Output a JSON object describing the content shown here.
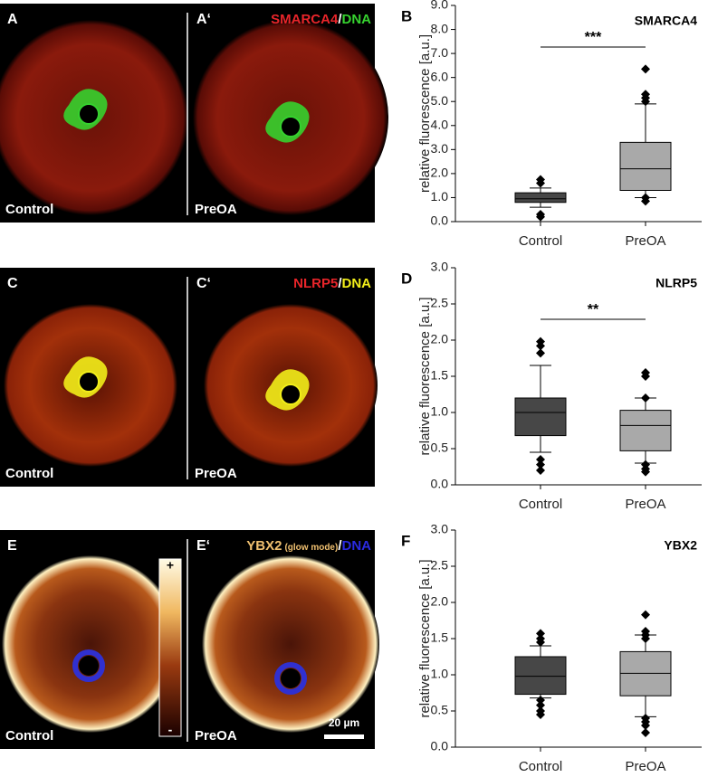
{
  "chart_data": [
    {
      "type": "box",
      "panel_label": "B",
      "title": "SMARCA4",
      "y_label": "relative fluorescence [a.u.]",
      "categories": [
        "Control",
        "PreOA"
      ],
      "boxes": [
        {
          "whisker_low": 0.6,
          "q1": 0.8,
          "median": 0.95,
          "q3": 1.2,
          "whisker_high": 1.4,
          "outliers": [
            1.75,
            1.6,
            0.3,
            0.2
          ],
          "color": "#474747"
        },
        {
          "whisker_low": 1.0,
          "q1": 1.3,
          "median": 2.2,
          "q3": 3.3,
          "whisker_high": 4.9,
          "outliers": [
            6.35,
            5.3,
            5.15,
            5.0,
            1.0,
            0.85
          ],
          "color": "#a9a9a9"
        }
      ],
      "significance": "***",
      "ylim": [
        0,
        9
      ],
      "yticks": [
        {
          "value": 0,
          "label": "0.0"
        },
        {
          "value": 1,
          "label": "1.0"
        },
        {
          "value": 2,
          "label": "2.0"
        },
        {
          "value": 3,
          "label": "3.0"
        },
        {
          "value": 4,
          "label": "4.0"
        },
        {
          "value": 5,
          "label": "5.0"
        },
        {
          "value": 6,
          "label": "6.0"
        },
        {
          "value": 7,
          "label": "7.0"
        },
        {
          "value": 8,
          "label": "8.0"
        },
        {
          "value": 9,
          "label": "9.0"
        }
      ]
    },
    {
      "type": "box",
      "panel_label": "D",
      "title": "NLRP5",
      "y_label": "relative fluorescence [a.u.]",
      "categories": [
        "Control",
        "PreOA"
      ],
      "boxes": [
        {
          "whisker_low": 0.45,
          "q1": 0.68,
          "median": 1.0,
          "q3": 1.2,
          "whisker_high": 1.65,
          "outliers": [
            1.98,
            1.92,
            1.82,
            0.35,
            0.28,
            0.2
          ],
          "color": "#474747"
        },
        {
          "whisker_low": 0.3,
          "q1": 0.47,
          "median": 0.82,
          "q3": 1.03,
          "whisker_high": 1.2,
          "outliers": [
            1.55,
            1.5,
            1.2,
            0.28,
            0.22,
            0.18
          ],
          "color": "#a9a9a9"
        }
      ],
      "significance": "**",
      "ylim": [
        0,
        3
      ],
      "yticks": [
        {
          "value": 0,
          "label": "0.0"
        },
        {
          "value": 0.5,
          "label": "0.5"
        },
        {
          "value": 1,
          "label": "1.0"
        },
        {
          "value": 1.5,
          "label": "1.5"
        },
        {
          "value": 2,
          "label": "2.0"
        },
        {
          "value": 2.5,
          "label": "2.5"
        },
        {
          "value": 3,
          "label": "3.0"
        }
      ]
    },
    {
      "type": "box",
      "panel_label": "F",
      "title": "YBX2",
      "y_label": "relative fluorescence [a.u.]",
      "categories": [
        "Control",
        "PreOA"
      ],
      "boxes": [
        {
          "whisker_low": 0.68,
          "q1": 0.73,
          "median": 0.98,
          "q3": 1.25,
          "whisker_high": 1.4,
          "outliers": [
            1.57,
            1.5,
            1.45,
            0.65,
            0.58,
            0.5,
            0.45
          ],
          "color": "#474747"
        },
        {
          "whisker_low": 0.42,
          "q1": 0.71,
          "median": 1.02,
          "q3": 1.32,
          "whisker_high": 1.55,
          "outliers": [
            1.83,
            1.6,
            1.55,
            1.5,
            0.4,
            0.35,
            0.3,
            0.2
          ],
          "color": "#a9a9a9"
        }
      ],
      "ylim": [
        0,
        3
      ],
      "yticks": [
        {
          "value": 0,
          "label": "0.0"
        },
        {
          "value": 0.5,
          "label": "0.5"
        },
        {
          "value": 1,
          "label": "1.0"
        },
        {
          "value": 1.5,
          "label": "1.5"
        },
        {
          "value": 2,
          "label": "2.0"
        },
        {
          "value": 2.5,
          "label": "2.5"
        },
        {
          "value": 3,
          "label": "3.0"
        }
      ]
    }
  ],
  "image_panels": [
    {
      "labels": [
        "A",
        "A‘"
      ],
      "conditions": [
        "Control",
        "PreOA"
      ],
      "stain": [
        {
          "text": "SMARCA4",
          "color": "#e8252a"
        },
        {
          "text": "/",
          "color": "#ffffff"
        },
        {
          "text": "DNA",
          "color": "#36d12f"
        }
      ]
    },
    {
      "labels": [
        "C",
        "C‘"
      ],
      "conditions": [
        "Control",
        "PreOA"
      ],
      "stain": [
        {
          "text": "NLRP5",
          "color": "#e8252a"
        },
        {
          "text": "/",
          "color": "#ffffff"
        },
        {
          "text": "DNA",
          "color": "#f2ee1a"
        }
      ]
    },
    {
      "labels": [
        "E",
        "E‘"
      ],
      "conditions": [
        "Control",
        "PreOA"
      ],
      "stain": [
        {
          "text": "YBX2",
          "color": "#f0c070"
        },
        {
          "text": "(glow mode)",
          "color": "#f0c070"
        },
        {
          "text": "/",
          "color": "#ffffff"
        },
        {
          "text": "DNA",
          "color": "#2a2ae0"
        }
      ],
      "colorbar": [
        "+",
        "-"
      ],
      "scale_bar": "20 µm"
    }
  ]
}
